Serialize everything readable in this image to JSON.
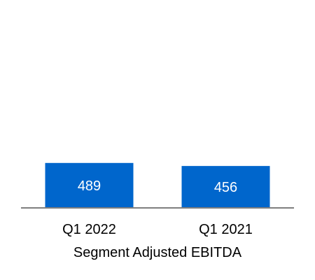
{
  "chart_data": {
    "type": "bar",
    "categories": [
      "Q1 2022",
      "Q1 2021"
    ],
    "values": [
      489,
      456
    ],
    "value_labels": [
      "489",
      "456"
    ],
    "xlabel": "Segment Adjusted EBITDA",
    "ylabel": "",
    "ylim": [
      0,
      1800
    ],
    "grid": false,
    "legend": "none",
    "bar_color": "#0066CC",
    "baseline_color": "#7F7F7F"
  }
}
